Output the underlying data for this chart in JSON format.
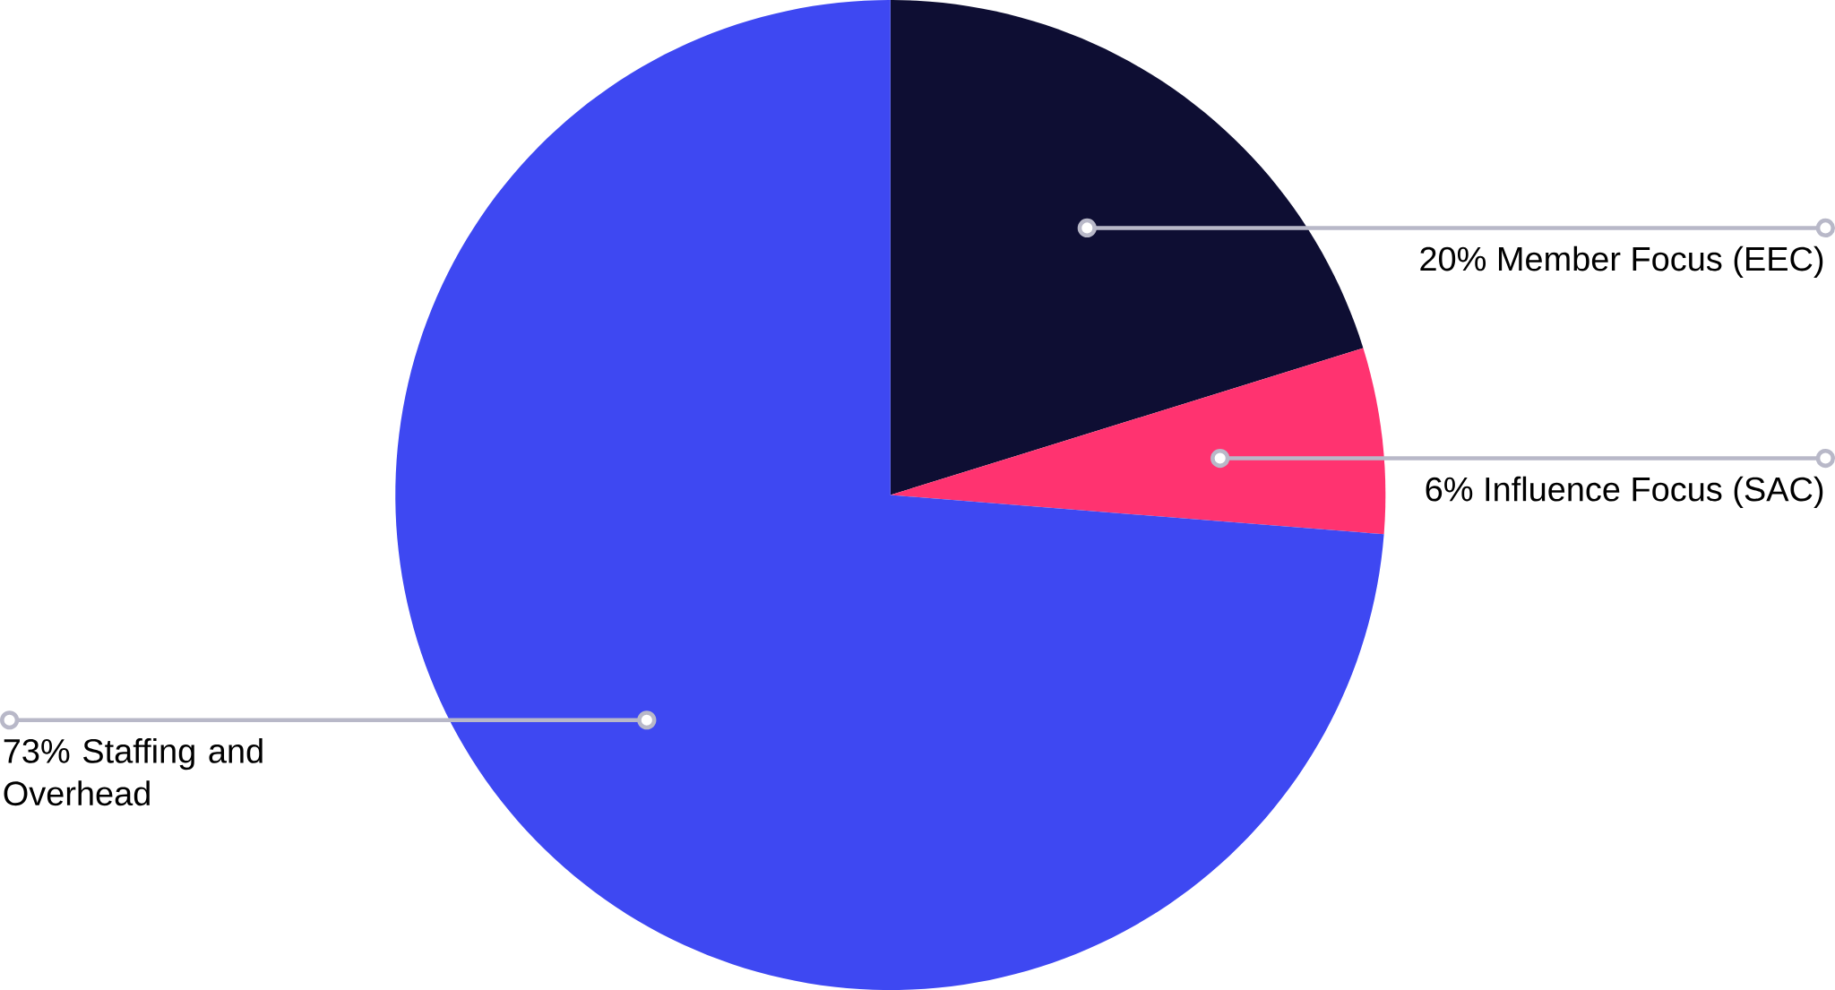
{
  "chart_data": {
    "type": "pie",
    "categories": [
      "Member Focus (EEC)",
      "Influence Focus (SAC)",
      "Staffing and Overhead"
    ],
    "values": [
      20,
      6,
      73
    ],
    "colors": [
      "#0e0e33",
      "#ff3370",
      "#3e48f2"
    ],
    "value_labels": [
      "20%",
      "6%",
      "73%"
    ]
  }
}
